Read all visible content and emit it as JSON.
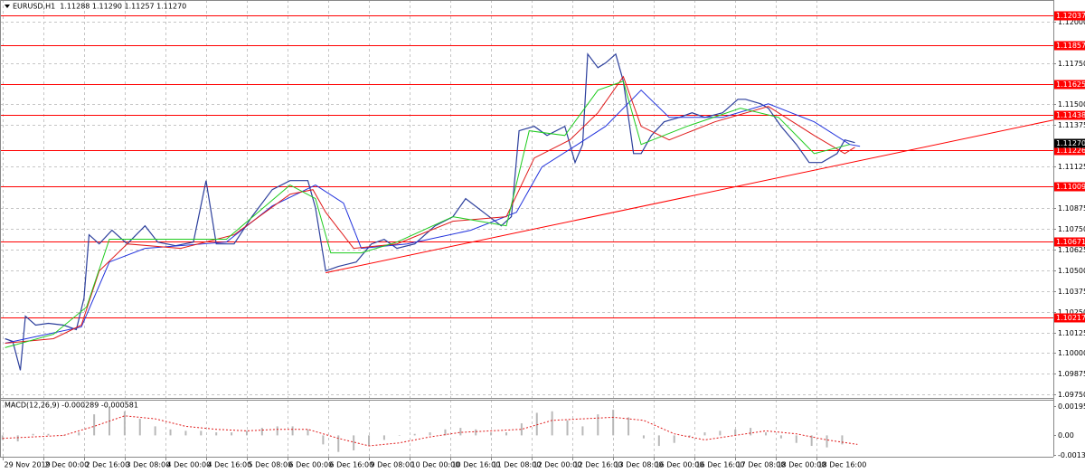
{
  "chart_data": [
    {
      "type": "line",
      "title": "EURUSD,H1  1.11288 1.11290 1.11257 1.11270",
      "xlim": [
        -1,
        413
      ],
      "xticks": [
        {
          "value": 0,
          "label": "29 Nov 2019"
        },
        {
          "value": 16,
          "label": "2 Dec 00:00"
        },
        {
          "value": 32,
          "label": "2 Dec 16:00"
        },
        {
          "value": 48,
          "label": "3 Dec 08:00"
        },
        {
          "value": 64,
          "label": "4 Dec 00:00"
        },
        {
          "value": 80,
          "label": "4 Dec 16:00"
        },
        {
          "value": 96,
          "label": "5 Dec 08:00"
        },
        {
          "value": 112,
          "label": "6 Dec 00:00"
        },
        {
          "value": 128,
          "label": "6 Dec 16:00"
        },
        {
          "value": 144,
          "label": "9 Dec 08:00"
        },
        {
          "value": 160,
          "label": "10 Dec 00:00"
        },
        {
          "value": 176,
          "label": "10 Dec 16:00"
        },
        {
          "value": 192,
          "label": "11 Dec 08:00"
        },
        {
          "value": 208,
          "label": "12 Dec 00:00"
        },
        {
          "value": 224,
          "label": "12 Dec 16:00"
        },
        {
          "value": 240,
          "label": "13 Dec 08:00"
        },
        {
          "value": 256,
          "label": "16 Dec 00:00"
        },
        {
          "value": 272,
          "label": "16 Dec 16:00"
        },
        {
          "value": 288,
          "label": "17 Dec 08:00"
        },
        {
          "value": 304,
          "label": "18 Dec 00:00"
        },
        {
          "value": 320,
          "label": "18 Dec 16:00"
        }
      ],
      "ylim": [
        1.0973,
        1.1213
      ],
      "yticks": [
        {
          "value": 1.12,
          "label": "1.12000"
        },
        {
          "value": 1.1175,
          "label": "1.11750"
        },
        {
          "value": 1.115,
          "label": "1.11500"
        },
        1.11375,
        1.11125,
        1.10875,
        {
          "value": 1.1075,
          "label": "1.10750"
        },
        1.10625,
        {
          "value": 1.105,
          "label": "1.10500"
        },
        1.10375,
        {
          "value": 1.1025,
          "label": "1.10250"
        },
        1.10125,
        {
          "value": 1.1,
          "label": "1.10000"
        },
        1.09875,
        {
          "value": 1.0975,
          "label": "1.09750"
        }
      ],
      "grid": true,
      "series": [
        {
          "color": "#2c3f9c",
          "x": [
            1,
            4,
            7,
            9,
            13,
            18,
            24,
            29,
            32,
            34,
            38,
            43,
            49,
            56,
            61,
            68,
            75,
            80,
            84,
            91,
            98,
            106,
            113,
            120,
            123,
            127,
            132,
            139,
            145,
            150,
            155,
            162,
            170,
            177,
            182,
            189,
            196,
            200,
            203,
            209,
            214,
            221,
            225,
            228,
            230,
            234,
            237,
            241,
            244,
            248,
            251,
            255,
            260,
            266,
            271,
            276,
            283,
            289,
            292,
            298,
            301,
            306,
            312,
            317,
            322,
            328,
            331,
            335
          ],
          "values": [
            1.10087,
            1.10071,
            1.09897,
            1.10223,
            1.10169,
            1.1018,
            1.10169,
            1.10142,
            1.10332,
            1.10714,
            1.10659,
            1.10741,
            1.10659,
            1.10768,
            1.1067,
            1.10648,
            1.1067,
            1.11041,
            1.10659,
            1.10659,
            1.10823,
            1.10986,
            1.11041,
            1.11041,
            1.10877,
            1.10496,
            1.10523,
            1.1055,
            1.10659,
            1.10686,
            1.10632,
            1.10659,
            1.10768,
            1.10823,
            1.10932,
            1.1085,
            1.10768,
            1.10823,
            1.11341,
            1.11368,
            1.11313,
            1.11368,
            1.1115,
            1.11259,
            1.11804,
            1.11722,
            1.1175,
            1.11804,
            1.1164,
            1.11204,
            1.11204,
            1.11313,
            1.11395,
            1.11422,
            1.1145,
            1.11422,
            1.1145,
            1.11531,
            1.11531,
            1.11504,
            1.11477,
            1.11368,
            1.11259,
            1.1115,
            1.1115,
            1.11204,
            1.11286,
            1.1127
          ]
        },
        {
          "color": "#2233dd",
          "x": [
            1,
            31,
            42,
            56,
            88,
            106,
            123,
            134,
            141,
            159,
            184,
            202,
            212,
            226,
            237,
            251,
            262,
            283,
            301,
            319,
            333,
            337
          ],
          "values": [
            1.1006,
            1.10158,
            1.1055,
            1.10632,
            1.1067,
            1.10888,
            1.11014,
            1.10905,
            1.10632,
            1.10659,
            1.10741,
            1.1085,
            1.11123,
            1.11259,
            1.11368,
            1.11586,
            1.11422,
            1.11422,
            1.11504,
            1.11395,
            1.11259,
            1.11248
          ]
        },
        {
          "color": "#e01a1a",
          "x": [
            1,
            20,
            31,
            38,
            49,
            70,
            91,
            113,
            122,
            127,
            138,
            155,
            177,
            198,
            209,
            223,
            234,
            244,
            251,
            262,
            280,
            301,
            319,
            331,
            335
          ],
          "values": [
            1.1006,
            1.10087,
            1.10169,
            1.10496,
            1.10659,
            1.10632,
            1.10714,
            1.10959,
            1.10986,
            1.1085,
            1.10632,
            1.10659,
            1.10796,
            1.10823,
            1.11177,
            1.11286,
            1.1145,
            1.11668,
            1.11368,
            1.11286,
            1.11395,
            1.11488,
            1.11313,
            1.11204,
            1.11242
          ]
        },
        {
          "color": "#1fcc1f",
          "x": [
            1,
            20,
            33,
            42,
            59,
            88,
            113,
            123,
            129,
            141,
            155,
            177,
            198,
            207,
            221,
            234,
            244,
            251,
            269,
            290,
            305,
            319,
            333
          ],
          "values": [
            1.10033,
            1.10114,
            1.10278,
            1.10687,
            1.10687,
            1.10687,
            1.11014,
            1.10932,
            1.10605,
            1.10605,
            1.1067,
            1.10823,
            1.10768,
            1.11341,
            1.11313,
            1.11586,
            1.1164,
            1.11259,
            1.11368,
            1.11477,
            1.11422,
            1.11204,
            1.11259
          ]
        }
      ],
      "levels": [
        1.12037,
        1.11857,
        1.11625,
        1.11438,
        1.11226,
        1.11009,
        1.10671,
        1.10217
      ],
      "level_color": "#ff0000",
      "current_price": {
        "value": 1.1127,
        "label": "1.11270"
      },
      "trendline": {
        "color": "#ff0000",
        "x": [
          127,
          413
        ],
        "values": [
          1.10485,
          1.11406
        ]
      }
    },
    {
      "type": "bar",
      "title": "MACD(12,26,9) -0.000289 -0.000581",
      "ylim": [
        -0.00142,
        0.00237
      ],
      "yticks": [
        0.001953,
        {
          "value": 0,
          "label": "0.00"
        },
        -0.001318
      ],
      "color": "#b8b8b8",
      "x": [
        0,
        6,
        12,
        18,
        24,
        30,
        36,
        42,
        48,
        54,
        60,
        66,
        72,
        78,
        84,
        90,
        96,
        102,
        108,
        114,
        120,
        126,
        132,
        138,
        144,
        150,
        156,
        162,
        168,
        174,
        180,
        186,
        192,
        198,
        204,
        210,
        216,
        222,
        228,
        234,
        240,
        246,
        252,
        258,
        264,
        270,
        276,
        282,
        288,
        294,
        300,
        306,
        312,
        318,
        324,
        330
      ],
      "values": [
        -0.0003,
        -0.0004,
        0.0001,
        0.0001,
        0,
        0.0002,
        0.0014,
        0.0019,
        0.0016,
        0.0011,
        0.0006,
        0.0004,
        0.0003,
        0.0003,
        0.0002,
        0.0002,
        0.0003,
        0.0005,
        0.0006,
        0.0006,
        0.0004,
        -0.0006,
        -0.0011,
        -0.001,
        -0.0007,
        -0.0003,
        0,
        0.0001,
        0.0002,
        0.0004,
        0.0005,
        0.0004,
        0.0002,
        0.0002,
        0.0008,
        0.0015,
        0.0016,
        0.001,
        0.0006,
        0.0014,
        0.0017,
        0.0012,
        -0.0002,
        -0.0007,
        -0.0005,
        -0.0001,
        0.0002,
        0.0003,
        0.0004,
        0.0005,
        0.0002,
        -0.0002,
        -0.0005,
        -0.0007,
        -0.0008,
        -0.0006
      ],
      "signal": {
        "color": "#e01a1a",
        "x": [
          0,
          12,
          24,
          36,
          48,
          60,
          72,
          84,
          96,
          108,
          120,
          132,
          144,
          156,
          168,
          180,
          192,
          204,
          216,
          228,
          240,
          252,
          264,
          276,
          288,
          300,
          312,
          324,
          336
        ],
        "values": [
          -0.0002,
          -0.0001,
          0,
          0.0006,
          0.0013,
          0.0011,
          0.0006,
          0.0004,
          0.0003,
          0.0004,
          0.0004,
          -0.0002,
          -0.0007,
          -0.0005,
          -0.0001,
          0.0002,
          0.0003,
          0.0004,
          0.001,
          0.0011,
          0.0012,
          0.001,
          0.0001,
          -0.0003,
          0,
          0.0003,
          0.0001,
          -0.0003,
          -0.0006
        ]
      }
    }
  ]
}
